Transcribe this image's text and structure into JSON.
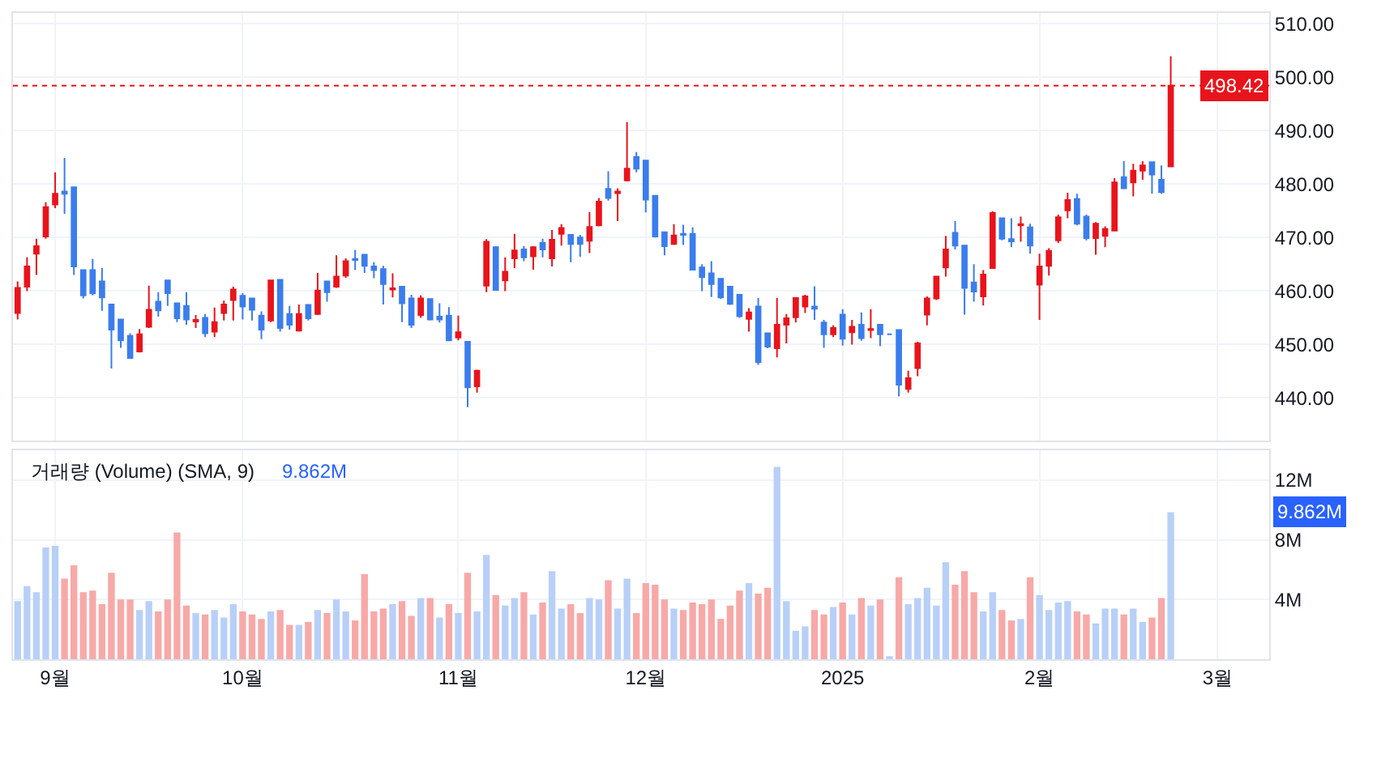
{
  "chart_data": [
    {
      "type": "candlestick",
      "categories": [
        null,
        null,
        null,
        null,
        null,
        null,
        null,
        null,
        null,
        null,
        null,
        null,
        null,
        null,
        null,
        null,
        null,
        null,
        null,
        null,
        null,
        null,
        null,
        null,
        null,
        null,
        null,
        null,
        null,
        null,
        null,
        null,
        null,
        null,
        null,
        null,
        null,
        null,
        null,
        null,
        null,
        null,
        null,
        null,
        null,
        null,
        null,
        null,
        null,
        null,
        null,
        null,
        null,
        null,
        null,
        null,
        null,
        null,
        null,
        null,
        null,
        null,
        null,
        null,
        null,
        null,
        null,
        null,
        null,
        null,
        null,
        null,
        null,
        null,
        null,
        null,
        null,
        null,
        null,
        null,
        null,
        null,
        null,
        null,
        null,
        null,
        null,
        null,
        null,
        null,
        null,
        null,
        null,
        null,
        null,
        null,
        null,
        null,
        null,
        null,
        null,
        null,
        null,
        null,
        null,
        null,
        null,
        null,
        null,
        null,
        null,
        null,
        null,
        null,
        null,
        null,
        null,
        null,
        null,
        null,
        null,
        null,
        null,
        null,
        null,
        null,
        null,
        null,
        null,
        null,
        null,
        null,
        null,
        null
      ],
      "ohlc": [
        [
          455.9,
          461.8,
          454.7,
          460.6
        ],
        [
          460.8,
          466.3,
          460.0,
          464.6
        ],
        [
          467.0,
          469.8,
          463.0,
          468.4
        ],
        [
          470.2,
          476.6,
          469.8,
          475.7
        ],
        [
          476.2,
          482.2,
          475.5,
          478.2
        ],
        [
          478.6,
          484.9,
          474.4,
          478.2
        ],
        [
          479.4,
          479.4,
          463.0,
          464.6
        ],
        [
          463.9,
          463.9,
          458.6,
          459.2
        ],
        [
          463.9,
          466.0,
          459.2,
          459.6
        ],
        [
          461.8,
          464.3,
          456.3,
          458.8
        ],
        [
          457.5,
          457.5,
          445.5,
          452.8
        ],
        [
          454.7,
          454.7,
          449.4,
          450.8
        ],
        [
          451.6,
          452.1,
          447.3,
          447.5
        ],
        [
          448.7,
          452.9,
          448.5,
          451.9
        ],
        [
          453.3,
          461.0,
          453.1,
          456.5
        ],
        [
          458.0,
          459.8,
          455.2,
          456.4
        ],
        [
          462.0,
          462.0,
          457.2,
          459.6
        ],
        [
          457.7,
          457.7,
          454.2,
          454.9
        ],
        [
          457.2,
          459.8,
          453.7,
          454.7
        ],
        [
          454.3,
          455.5,
          453.1,
          454.6
        ],
        [
          455.0,
          455.7,
          451.4,
          452.1
        ],
        [
          452.4,
          456.9,
          451.4,
          454.2
        ],
        [
          455.9,
          458.2,
          454.5,
          457.5
        ],
        [
          458.3,
          460.8,
          454.5,
          460.3
        ],
        [
          459.1,
          459.6,
          454.7,
          457.1
        ],
        [
          458.6,
          458.6,
          454.5,
          456.5
        ],
        [
          455.4,
          456.2,
          451.0,
          452.8
        ],
        [
          454.5,
          462.0,
          454.2,
          462.0
        ],
        [
          462.1,
          462.1,
          452.4,
          453.1
        ],
        [
          455.7,
          457.2,
          452.8,
          453.7
        ],
        [
          452.6,
          457.5,
          452.4,
          455.7
        ],
        [
          457.4,
          457.4,
          454.5,
          454.9
        ],
        [
          455.7,
          463.4,
          455.5,
          460.1
        ],
        [
          461.8,
          461.8,
          458.0,
          459.8
        ],
        [
          460.8,
          466.7,
          460.6,
          462.7
        ],
        [
          462.9,
          466.1,
          462.5,
          465.6
        ],
        [
          466.0,
          467.7,
          463.9,
          465.8
        ],
        [
          466.8,
          466.8,
          463.4,
          464.7
        ],
        [
          464.6,
          465.4,
          462.4,
          463.9
        ],
        [
          464.1,
          464.7,
          457.5,
          461.3
        ],
        [
          460.3,
          463.3,
          458.8,
          460.5
        ],
        [
          460.8,
          460.8,
          454.2,
          457.7
        ],
        [
          458.6,
          459.3,
          453.1,
          453.7
        ],
        [
          455.5,
          459.2,
          455.0,
          458.6
        ],
        [
          458.5,
          458.5,
          454.5,
          454.7
        ],
        [
          455.2,
          457.7,
          454.1,
          454.7
        ],
        [
          455.4,
          457.0,
          450.8,
          450.8
        ],
        [
          451.3,
          455.4,
          450.8,
          452.3
        ],
        [
          450.5,
          450.5,
          438.3,
          442.0
        ],
        [
          442.2,
          445.3,
          441.0,
          445.1
        ],
        [
          461.0,
          469.7,
          459.8,
          469.2
        ],
        [
          468.2,
          468.4,
          460.2,
          460.2
        ],
        [
          462.0,
          466.3,
          460.0,
          463.6
        ],
        [
          466.1,
          470.7,
          464.3,
          467.6
        ],
        [
          467.8,
          468.4,
          465.6,
          466.3
        ],
        [
          466.5,
          468.4,
          464.0,
          468.2
        ],
        [
          469.0,
          469.8,
          466.3,
          467.8
        ],
        [
          466.1,
          471.4,
          464.6,
          469.6
        ],
        [
          470.7,
          472.5,
          468.5,
          471.8
        ],
        [
          470.5,
          470.5,
          465.4,
          468.8
        ],
        [
          470.0,
          470.5,
          466.4,
          468.8
        ],
        [
          469.4,
          474.8,
          467.1,
          472.0
        ],
        [
          472.3,
          477.4,
          472.1,
          476.7
        ],
        [
          479.1,
          482.4,
          476.9,
          477.4
        ],
        [
          478.3,
          479.2,
          473.1,
          478.6
        ],
        [
          480.7,
          491.6,
          480.5,
          482.9
        ],
        [
          485.1,
          486.0,
          482.2,
          482.9
        ],
        [
          484.4,
          484.4,
          474.7,
          477.1
        ],
        [
          477.8,
          477.8,
          470.0,
          470.2
        ],
        [
          471.0,
          471.0,
          466.7,
          468.4
        ],
        [
          468.8,
          472.5,
          468.6,
          470.4
        ],
        [
          470.7,
          472.4,
          468.6,
          470.5
        ],
        [
          470.7,
          471.9,
          464.0,
          464.0
        ],
        [
          464.4,
          465.0,
          460.0,
          462.6
        ],
        [
          463.3,
          465.6,
          458.9,
          461.3
        ],
        [
          462.3,
          462.3,
          458.5,
          458.8
        ],
        [
          460.8,
          460.8,
          457.4,
          457.6
        ],
        [
          459.3,
          459.3,
          455.0,
          455.3
        ],
        [
          454.8,
          456.8,
          452.4,
          456.0
        ],
        [
          457.1,
          458.7,
          446.2,
          446.7
        ],
        [
          452.1,
          452.1,
          449.3,
          449.6
        ],
        [
          449.3,
          458.7,
          447.6,
          453.7
        ],
        [
          453.7,
          455.7,
          450.2,
          454.9
        ],
        [
          455.1,
          458.7,
          454.1,
          458.7
        ],
        [
          457.1,
          459.3,
          455.9,
          459.0
        ],
        [
          457.1,
          460.9,
          454.6,
          456.7
        ],
        [
          454.1,
          454.6,
          449.4,
          451.9
        ],
        [
          451.9,
          453.6,
          451.4,
          453.1
        ],
        [
          455.6,
          456.6,
          449.8,
          451.1
        ],
        [
          452.3,
          454.6,
          450.0,
          453.3
        ],
        [
          453.7,
          456.0,
          450.7,
          451.2
        ],
        [
          452.7,
          456.6,
          451.2,
          452.9
        ],
        [
          453.7,
          453.7,
          449.7,
          451.9
        ],
        [
          451.9,
          451.9,
          451.9,
          451.9
        ],
        [
          452.7,
          452.7,
          440.3,
          442.5
        ],
        [
          441.7,
          445.1,
          441.0,
          443.7
        ],
        [
          445.6,
          450.5,
          444.1,
          450.2
        ],
        [
          455.6,
          459.0,
          453.6,
          458.6
        ],
        [
          458.6,
          462.7,
          458.3,
          462.7
        ],
        [
          464.4,
          470.3,
          462.7,
          467.8
        ],
        [
          470.9,
          473.1,
          467.8,
          468.5
        ],
        [
          468.5,
          468.5,
          455.6,
          460.6
        ],
        [
          461.6,
          465.0,
          458.0,
          459.9
        ],
        [
          459.0,
          463.9,
          457.3,
          463.1
        ],
        [
          464.3,
          474.9,
          464.3,
          474.6
        ],
        [
          473.6,
          473.6,
          469.5,
          469.8
        ],
        [
          469.7,
          473.6,
          468.2,
          469.3
        ],
        [
          472.3,
          473.9,
          469.2,
          472.5
        ],
        [
          471.9,
          472.6,
          467.0,
          468.5
        ],
        [
          461.2,
          467.0,
          454.6,
          464.6
        ],
        [
          464.7,
          468.0,
          462.9,
          467.5
        ],
        [
          469.5,
          474.3,
          469.0,
          473.8
        ],
        [
          475.1,
          478.4,
          473.6,
          477.0
        ],
        [
          477.2,
          478.2,
          472.3,
          472.6
        ],
        [
          473.9,
          474.3,
          469.5,
          469.9
        ],
        [
          469.9,
          472.9,
          466.8,
          472.6
        ],
        [
          470.3,
          472.1,
          468.2,
          471.6
        ],
        [
          471.3,
          481.1,
          471.3,
          480.3
        ],
        [
          481.3,
          484.3,
          479.2,
          479.2
        ],
        [
          480.3,
          483.8,
          477.7,
          482.5
        ],
        [
          482.5,
          484.3,
          480.8,
          483.5
        ],
        [
          484.1,
          484.1,
          478.2,
          481.8
        ],
        [
          480.8,
          483.5,
          478.2,
          478.5
        ],
        [
          483.3,
          503.9,
          483.3,
          498.42
        ],
        null,
        null,
        null,
        null,
        null,
        null,
        null,
        null,
        null,
        null
      ],
      "colors": [
        "#e8141c",
        "#e8141c",
        "#e8141c",
        "#e8141c",
        "#e8141c",
        "#3b7ded",
        "#3b7ded",
        "#3b7ded",
        "#3b7ded",
        "#3b7ded",
        "#3b7ded",
        "#3b7ded",
        "#3b7ded",
        "#e8141c",
        "#e8141c",
        "#3b7ded",
        "#3b7ded",
        "#3b7ded",
        "#3b7ded",
        "#e8141c",
        "#3b7ded",
        "#e8141c",
        "#e8141c",
        "#e8141c",
        "#3b7ded",
        "#3b7ded",
        "#3b7ded",
        "#e8141c",
        "#3b7ded",
        "#3b7ded",
        "#e8141c",
        "#3b7ded",
        "#e8141c",
        "#3b7ded",
        "#e8141c",
        "#e8141c",
        "#3b7ded",
        "#3b7ded",
        "#3b7ded",
        "#3b7ded",
        "#e8141c",
        "#3b7ded",
        "#3b7ded",
        "#e8141c",
        "#3b7ded",
        "#3b7ded",
        "#3b7ded",
        "#e8141c",
        "#3b7ded",
        "#e8141c",
        "#e8141c",
        "#3b7ded",
        "#e8141c",
        "#e8141c",
        "#3b7ded",
        "#e8141c",
        "#3b7ded",
        "#e8141c",
        "#e8141c",
        "#3b7ded",
        "#3b7ded",
        "#e8141c",
        "#e8141c",
        "#3b7ded",
        "#e8141c",
        "#e8141c",
        "#3b7ded",
        "#3b7ded",
        "#3b7ded",
        "#3b7ded",
        "#e8141c",
        "#3b7ded",
        "#3b7ded",
        "#3b7ded",
        "#3b7ded",
        "#3b7ded",
        "#3b7ded",
        "#3b7ded",
        "#e8141c",
        "#3b7ded",
        "#3b7ded",
        "#e8141c",
        "#e8141c",
        "#e8141c",
        "#e8141c",
        "#3b7ded",
        "#3b7ded",
        "#e8141c",
        "#3b7ded",
        "#e8141c",
        "#3b7ded",
        "#e8141c",
        "#3b7ded",
        "#3b7ded",
        "#3b7ded",
        "#e8141c",
        "#e8141c",
        "#e8141c",
        "#e8141c",
        "#e8141c",
        "#3b7ded",
        "#3b7ded",
        "#3b7ded",
        "#e8141c",
        "#e8141c",
        "#3b7ded",
        "#3b7ded",
        "#e8141c",
        "#3b7ded",
        "#e8141c",
        "#e8141c",
        "#e8141c",
        "#e8141c",
        "#3b7ded",
        "#3b7ded",
        "#e8141c",
        "#e8141c",
        "#e8141c",
        "#3b7ded",
        "#e8141c",
        "#e8141c",
        "#3b7ded",
        "#3b7ded",
        "#e8141c",
        null,
        null,
        null,
        null,
        null,
        null,
        null,
        null,
        null,
        null
      ],
      "ylim": [
        432,
        512
      ],
      "yticks": [
        {
          "value": 440,
          "label": "440.00"
        },
        {
          "value": 450,
          "label": "450.00"
        },
        {
          "value": 460,
          "label": "460.00"
        },
        {
          "value": 470,
          "label": "470.00"
        },
        {
          "value": 480,
          "label": "480.00"
        },
        {
          "value": 490,
          "label": "490.00"
        },
        {
          "value": 500,
          "label": "500.00"
        },
        {
          "value": 510,
          "label": "510.00"
        }
      ],
      "ref_lines": [
        {
          "axis": "y",
          "value": 498.42,
          "label": "498.42",
          "color": "#e8141c",
          "line_style": "dotted"
        }
      ],
      "grid": true,
      "tick_labels": "y"
    },
    {
      "type": "bar",
      "categories": [
        null,
        null,
        null,
        null,
        "9월",
        null,
        null,
        null,
        null,
        null,
        null,
        null,
        null,
        null,
        null,
        null,
        null,
        null,
        null,
        null,
        null,
        null,
        null,
        null,
        "10월",
        null,
        null,
        null,
        null,
        null,
        null,
        null,
        null,
        null,
        null,
        null,
        null,
        null,
        null,
        null,
        null,
        null,
        null,
        null,
        null,
        null,
        null,
        "11월",
        null,
        null,
        null,
        null,
        null,
        null,
        null,
        null,
        null,
        null,
        null,
        null,
        null,
        null,
        null,
        null,
        null,
        null,
        null,
        "12월",
        null,
        null,
        null,
        null,
        null,
        null,
        null,
        null,
        null,
        null,
        null,
        null,
        null,
        null,
        null,
        null,
        null,
        null,
        null,
        null,
        "2025",
        null,
        null,
        null,
        null,
        null,
        null,
        null,
        null,
        null,
        null,
        null,
        null,
        null,
        null,
        null,
        null,
        null,
        null,
        null,
        null,
        "2월",
        null,
        null,
        null,
        null,
        null,
        null,
        null,
        null,
        null,
        null,
        null,
        null,
        null,
        null,
        null,
        null,
        null,
        null,
        "3월",
        null,
        null,
        null,
        null,
        null
      ],
      "values": [
        3.9,
        4.9,
        4.5,
        7.5,
        7.6,
        5.4,
        6.3,
        4.5,
        4.6,
        3.7,
        5.8,
        4.0,
        4.0,
        3.3,
        3.9,
        3.2,
        4.0,
        8.5,
        3.6,
        3.1,
        3.0,
        3.3,
        2.8,
        3.7,
        3.2,
        3.0,
        2.7,
        3.2,
        3.3,
        2.3,
        2.3,
        2.5,
        3.3,
        3.1,
        4.0,
        3.2,
        2.6,
        5.7,
        3.2,
        3.4,
        3.7,
        3.9,
        2.9,
        4.1,
        4.1,
        2.8,
        3.7,
        3.1,
        5.8,
        3.2,
        7.0,
        4.3,
        3.6,
        4.1,
        4.5,
        3.0,
        3.8,
        5.9,
        3.4,
        3.7,
        3.1,
        4.1,
        4.0,
        5.3,
        3.4,
        5.4,
        3.1,
        5.1,
        5.0,
        4.0,
        3.4,
        3.3,
        3.8,
        3.7,
        4.0,
        2.7,
        3.6,
        4.6,
        5.1,
        4.4,
        4.8,
        12.9,
        3.9,
        1.9,
        2.2,
        3.3,
        3.0,
        3.5,
        3.8,
        3.0,
        4.1,
        3.6,
        4.0,
        0.1,
        5.5,
        3.7,
        4.1,
        4.8,
        3.6,
        6.5,
        5.0,
        5.9,
        4.5,
        3.2,
        4.5,
        3.3,
        2.6,
        2.7,
        5.5,
        4.3,
        3.3,
        3.8,
        3.9,
        3.2,
        3.0,
        2.4,
        3.4,
        3.4,
        3.0,
        3.4,
        2.5,
        2.8,
        4.1,
        9.862,
        null,
        null,
        null,
        null,
        null,
        null,
        null,
        null,
        null,
        null
      ],
      "colors": [
        "#b8d0f8",
        "#b8d0f8",
        "#b8d0f8",
        "#b8d0f8",
        "#b8d0f8",
        "#f7a9a8",
        "#f7a9a8",
        "#f7a9a8",
        "#f7a9a8",
        "#f7a9a8",
        "#f7a9a8",
        "#f7a9a8",
        "#f7a9a8",
        "#b8d0f8",
        "#b8d0f8",
        "#f7a9a8",
        "#f7a9a8",
        "#f7a9a8",
        "#f7a9a8",
        "#b8d0f8",
        "#f7a9a8",
        "#b8d0f8",
        "#b8d0f8",
        "#b8d0f8",
        "#f7a9a8",
        "#f7a9a8",
        "#f7a9a8",
        "#b8d0f8",
        "#f7a9a8",
        "#f7a9a8",
        "#b8d0f8",
        "#f7a9a8",
        "#b8d0f8",
        "#f7a9a8",
        "#b8d0f8",
        "#b8d0f8",
        "#f7a9a8",
        "#f7a9a8",
        "#f7a9a8",
        "#f7a9a8",
        "#b8d0f8",
        "#f7a9a8",
        "#f7a9a8",
        "#b8d0f8",
        "#f7a9a8",
        "#b8d0f8",
        "#f7a9a8",
        "#b8d0f8",
        "#f7a9a8",
        "#b8d0f8",
        "#b8d0f8",
        "#f7a9a8",
        "#b8d0f8",
        "#b8d0f8",
        "#f7a9a8",
        "#b8d0f8",
        "#f7a9a8",
        "#b8d0f8",
        "#b8d0f8",
        "#f7a9a8",
        "#f7a9a8",
        "#b8d0f8",
        "#b8d0f8",
        "#f7a9a8",
        "#b8d0f8",
        "#b8d0f8",
        "#f7a9a8",
        "#f7a9a8",
        "#f7a9a8",
        "#f7a9a8",
        "#b8d0f8",
        "#f7a9a8",
        "#f7a9a8",
        "#f7a9a8",
        "#f7a9a8",
        "#f7a9a8",
        "#f7a9a8",
        "#f7a9a8",
        "#b8d0f8",
        "#f7a9a8",
        "#f7a9a8",
        "#b8d0f8",
        "#b8d0f8",
        "#b8d0f8",
        "#b8d0f8",
        "#f7a9a8",
        "#f7a9a8",
        "#b8d0f8",
        "#f7a9a8",
        "#b8d0f8",
        "#f7a9a8",
        "#b8d0f8",
        "#f7a9a8",
        "#b8d0f8",
        "#f7a9a8",
        "#b8d0f8",
        "#b8d0f8",
        "#b8d0f8",
        "#b8d0f8",
        "#b8d0f8",
        "#f7a9a8",
        "#f7a9a8",
        "#f7a9a8",
        "#b8d0f8",
        "#b8d0f8",
        "#f7a9a8",
        "#f7a9a8",
        "#b8d0f8",
        "#f7a9a8",
        "#b8d0f8",
        "#b8d0f8",
        "#b8d0f8",
        "#b8d0f8",
        "#f7a9a8",
        "#f7a9a8",
        "#b8d0f8",
        "#b8d0f8",
        "#b8d0f8",
        "#f7a9a8",
        "#b8d0f8",
        "#b8d0f8",
        "#f7a9a8",
        "#f7a9a8",
        "#b8d0f8",
        null,
        null,
        null,
        null,
        null,
        null,
        null,
        null,
        null,
        null
      ],
      "ylim": [
        0,
        14
      ],
      "yticks": [
        {
          "value": 4,
          "label": "4M"
        },
        {
          "value": 8,
          "label": "8M"
        },
        {
          "value": 12,
          "label": "12M"
        }
      ],
      "annotations": [
        "거래량 (Volume) (SMA, 9)",
        "9.862M",
        "9.862M"
      ],
      "grid": true
    }
  ]
}
